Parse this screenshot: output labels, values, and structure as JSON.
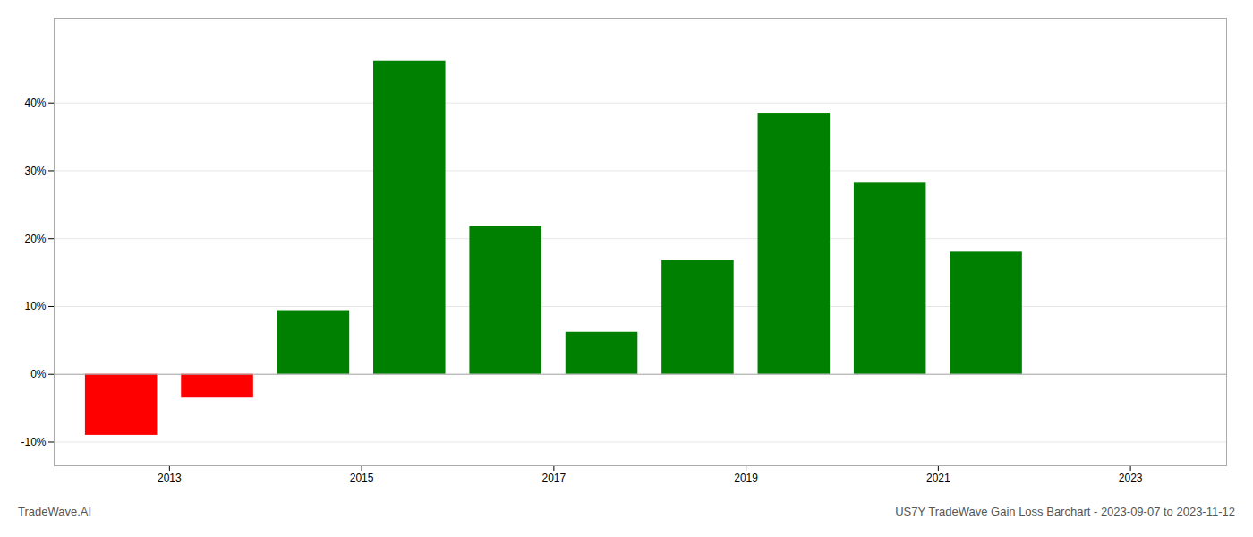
{
  "chart_data": {
    "type": "bar",
    "x": [
      2012.5,
      2013.5,
      2014.5,
      2015.5,
      2016.5,
      2017.5,
      2018.5,
      2019.5,
      2020.5,
      2021.5,
      2022.5
    ],
    "values": [
      -0.09,
      -0.035,
      0.094,
      0.462,
      0.218,
      0.062,
      0.168,
      0.385,
      0.283,
      0.18,
      0.0
    ],
    "colors": [
      "#ff0000",
      "#ff0000",
      "#008000",
      "#008000",
      "#008000",
      "#008000",
      "#008000",
      "#008000",
      "#008000",
      "#008000",
      "#008000"
    ],
    "xlim": [
      2011.8,
      2024.0
    ],
    "xticks": [
      2013,
      2015,
      2017,
      2019,
      2021,
      2023
    ],
    "ylim": [
      -0.135,
      0.525
    ],
    "yticks": [
      {
        "value": -0.1,
        "label": "-10%"
      },
      {
        "value": 0.0,
        "label": "0%"
      },
      {
        "value": 0.1,
        "label": "10%"
      },
      {
        "value": 0.2,
        "label": "20%"
      },
      {
        "value": 0.3,
        "label": "30%"
      },
      {
        "value": 0.4,
        "label": "40%"
      }
    ],
    "grid": true,
    "annotations": [
      "TradeWave.AI",
      "US7Y TradeWave Gain Loss Barchart - 2023-09-07 to 2023-11-12"
    ]
  }
}
